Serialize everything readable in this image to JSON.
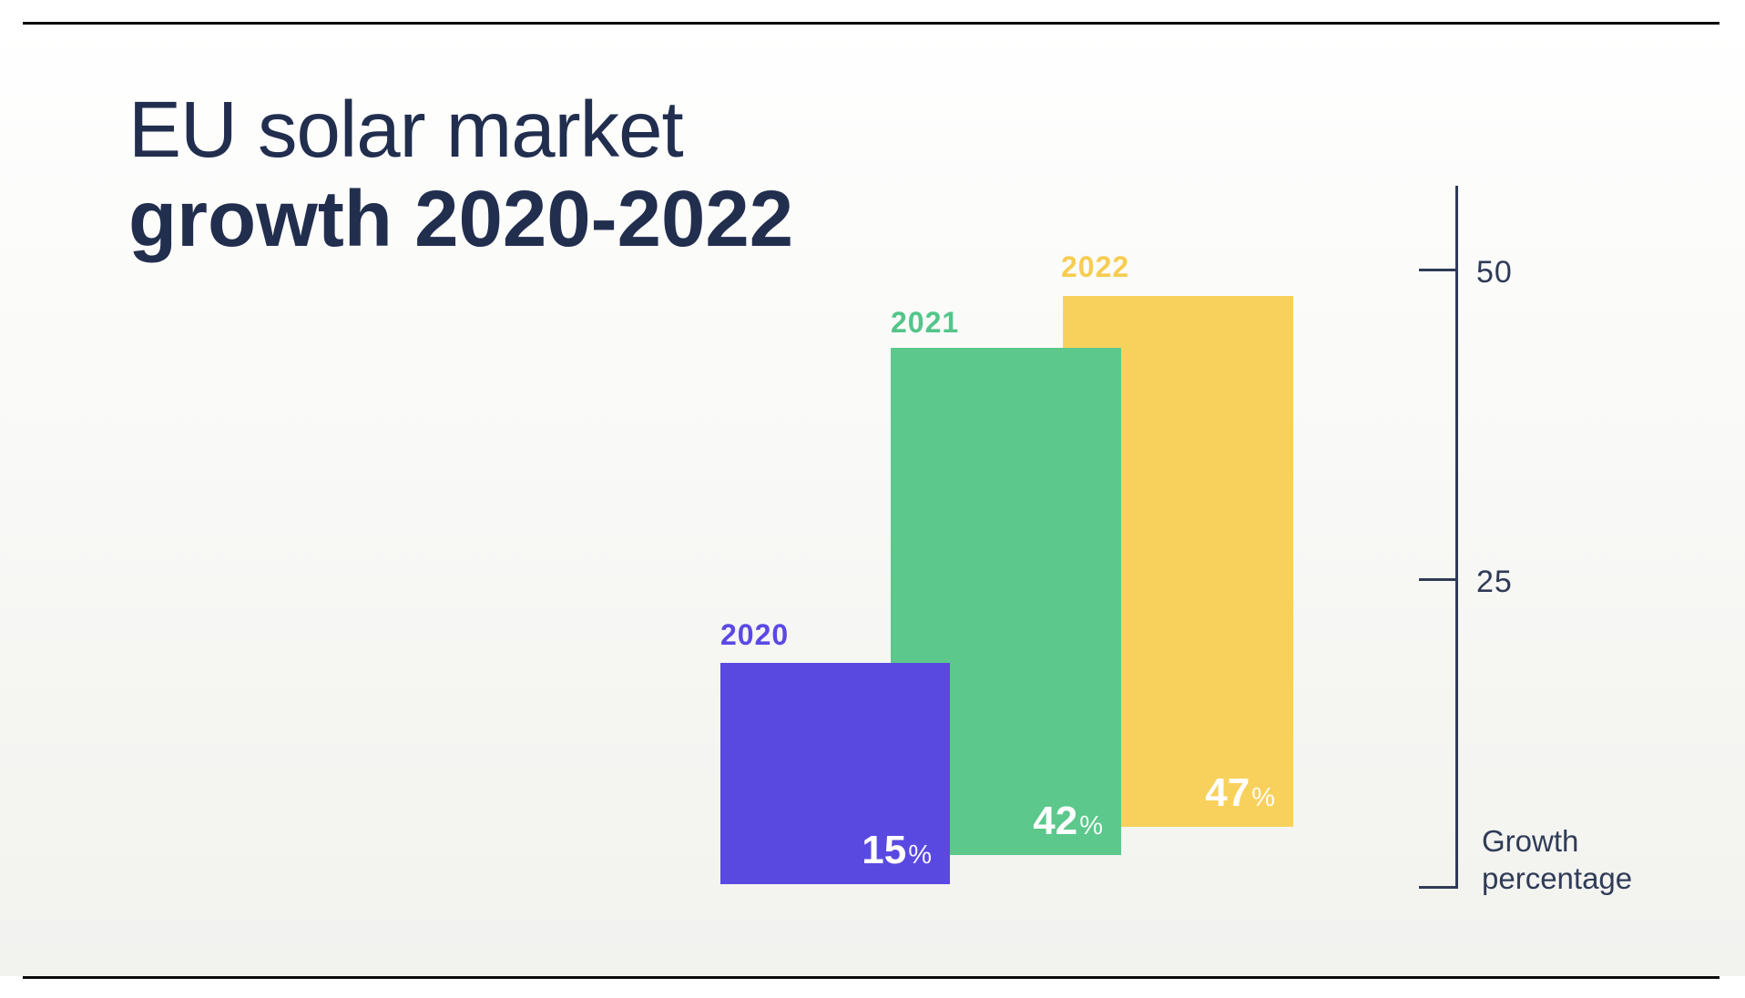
{
  "title": {
    "line1": "EU solar market",
    "line2": "growth 2020-2022"
  },
  "bars": [
    {
      "year": "2020",
      "value": "15",
      "percent_sign": "%",
      "color": "#5a49e1"
    },
    {
      "year": "2021",
      "value": "42",
      "percent_sign": "%",
      "color": "#5cc88c"
    },
    {
      "year": "2022",
      "value": "47",
      "percent_sign": "%",
      "color": "#f8d15d"
    }
  ],
  "axis": {
    "tick_top": "50",
    "tick_mid": "25",
    "caption_line1": "Growth",
    "caption_line2": "percentage"
  },
  "chart_data": {
    "type": "bar",
    "title": "EU solar market growth 2020-2022",
    "categories": [
      "2020",
      "2021",
      "2022"
    ],
    "values": [
      15,
      42,
      47
    ],
    "unit": "%",
    "series_colors": [
      "#5a49e1",
      "#5cc88c",
      "#f8d15d"
    ],
    "value_labels": [
      "15%",
      "42%",
      "47%"
    ],
    "ylabel": "Growth percentage",
    "yticks": [
      25,
      50
    ],
    "ylim": [
      0,
      57
    ],
    "axis_side": "right",
    "grid": false,
    "legend": false,
    "accent_text_color": "#212e4e"
  }
}
